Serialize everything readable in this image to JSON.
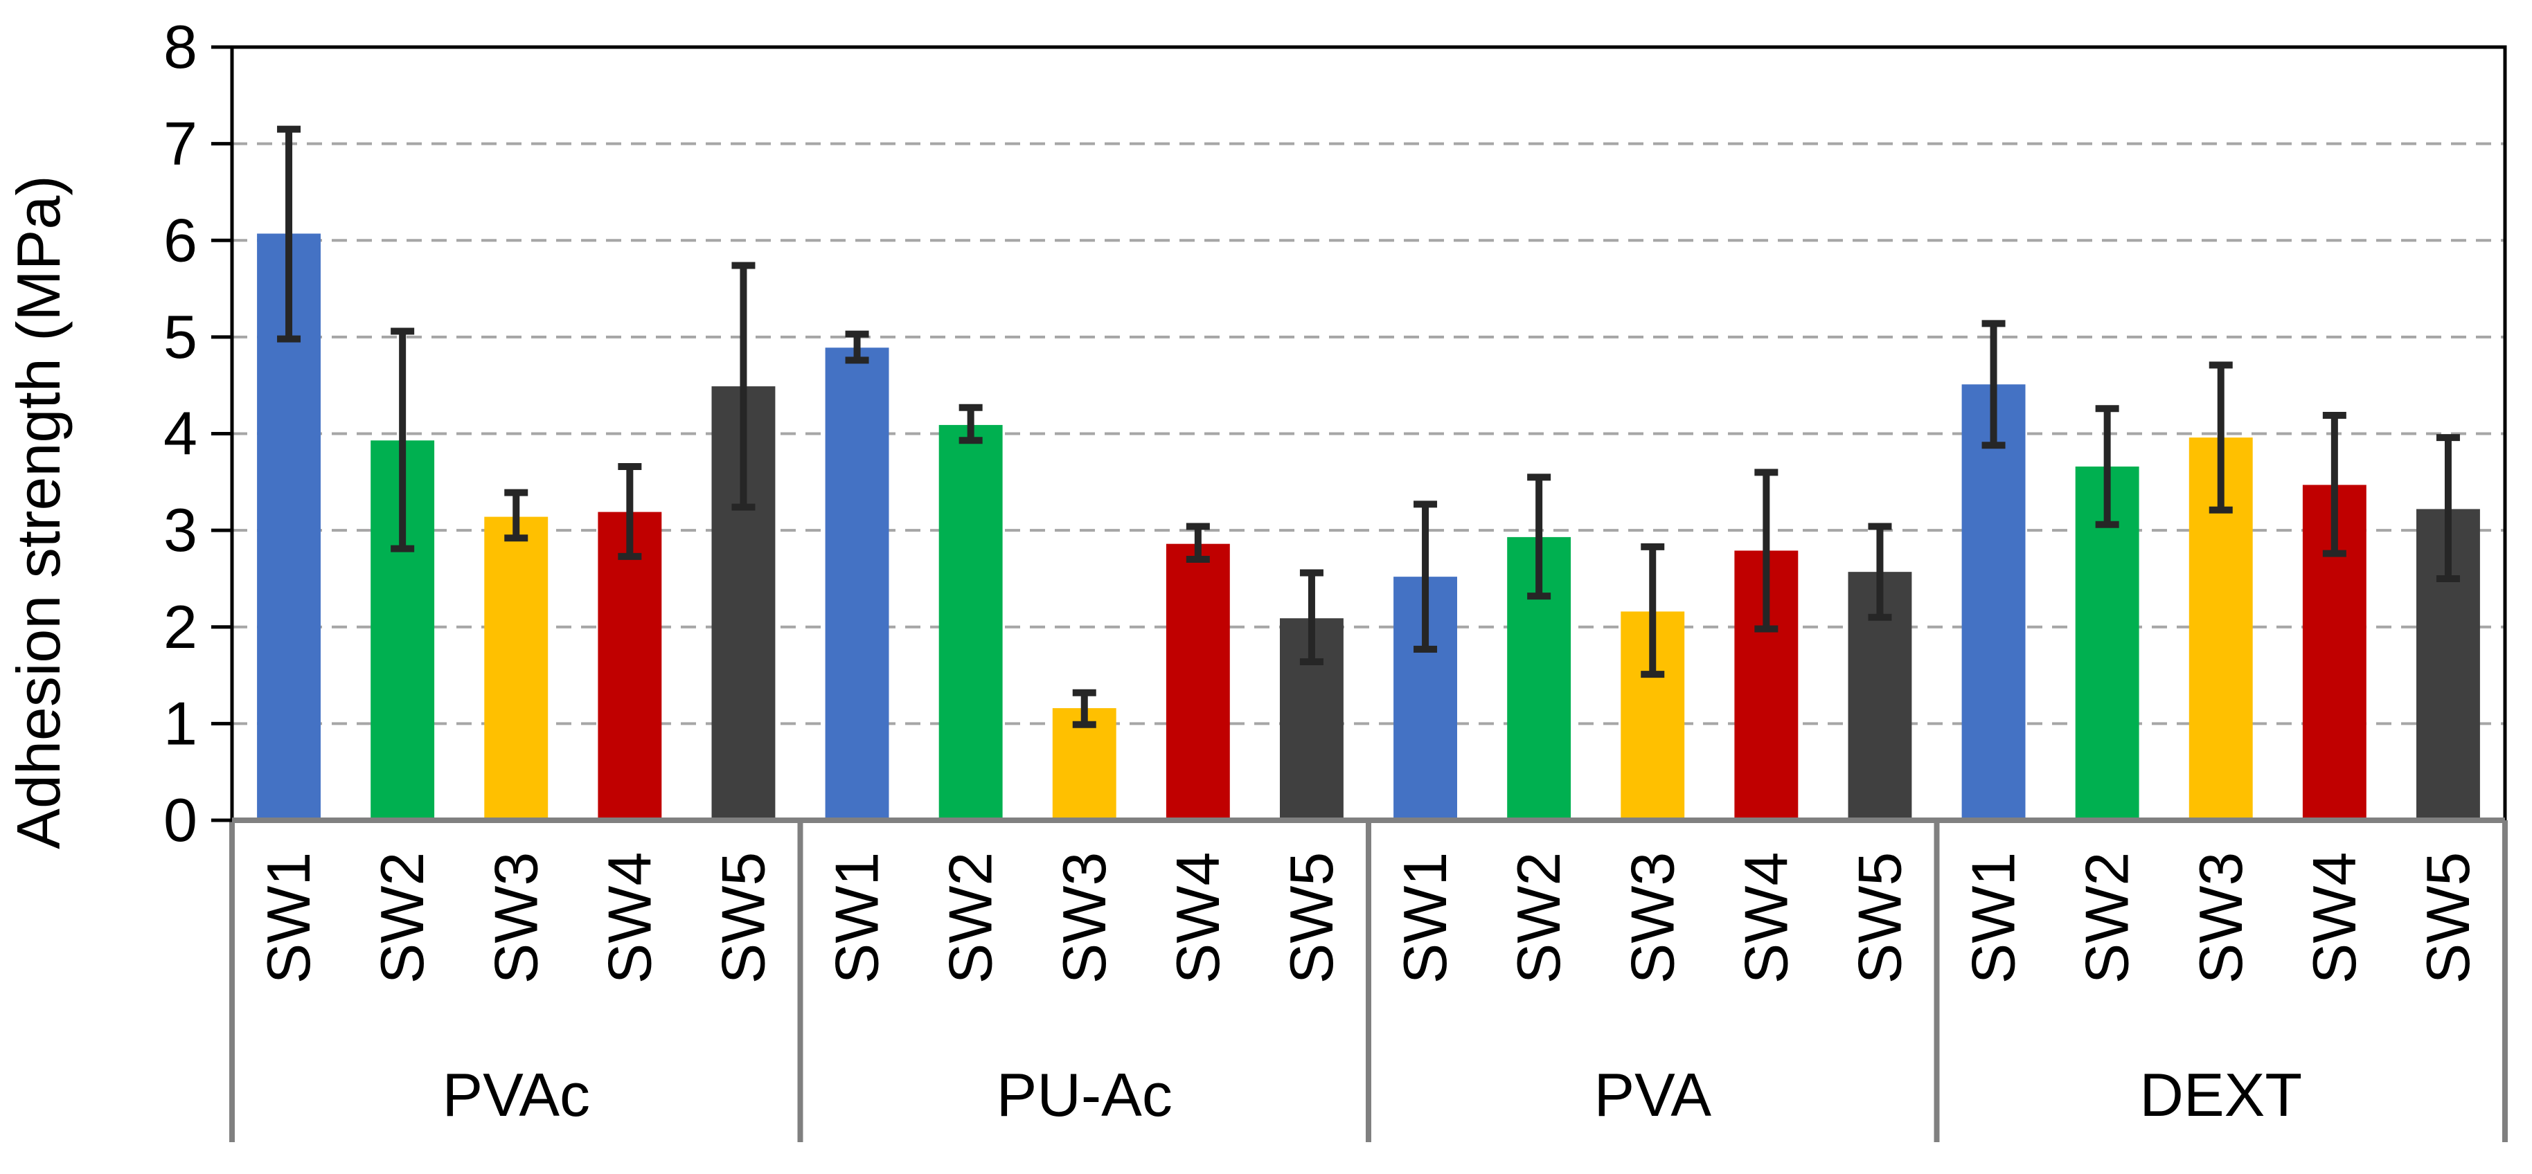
{
  "chart_data": {
    "type": "bar",
    "title": "",
    "ylabel": "Adhesion strength (MPa)",
    "xlabel": "",
    "ylim": [
      0,
      8
    ],
    "yticks": [
      "0",
      "1",
      "2",
      "3",
      "4",
      "5",
      "6",
      "7",
      "8"
    ],
    "grid": "horizontal dashed",
    "groups": [
      {
        "name": "PVAc",
        "bars": [
          {
            "label": "SW1",
            "value": 6.07,
            "err_low": 4.98,
            "err_high": 7.15
          },
          {
            "label": "SW2",
            "value": 3.93,
            "err_low": 2.81,
            "err_high": 5.06
          },
          {
            "label": "SW3",
            "value": 3.14,
            "err_low": 2.92,
            "err_high": 3.39
          },
          {
            "label": "SW4",
            "value": 3.19,
            "err_low": 2.73,
            "err_high": 3.66
          },
          {
            "label": "SW5",
            "value": 4.49,
            "err_low": 3.24,
            "err_high": 5.74
          }
        ]
      },
      {
        "name": "PU-Ac",
        "bars": [
          {
            "label": "SW1",
            "value": 4.89,
            "err_low": 4.76,
            "err_high": 5.03
          },
          {
            "label": "SW2",
            "value": 4.09,
            "err_low": 3.93,
            "err_high": 4.27
          },
          {
            "label": "SW3",
            "value": 1.16,
            "err_low": 0.99,
            "err_high": 1.32
          },
          {
            "label": "SW4",
            "value": 2.86,
            "err_low": 2.7,
            "err_high": 3.04
          },
          {
            "label": "SW5",
            "value": 2.09,
            "err_low": 1.64,
            "err_high": 2.56
          }
        ]
      },
      {
        "name": "PVA",
        "bars": [
          {
            "label": "SW1",
            "value": 2.52,
            "err_low": 1.77,
            "err_high": 3.27
          },
          {
            "label": "SW2",
            "value": 2.93,
            "err_low": 2.32,
            "err_high": 3.55
          },
          {
            "label": "SW3",
            "value": 2.16,
            "err_low": 1.51,
            "err_high": 2.83
          },
          {
            "label": "SW4",
            "value": 2.79,
            "err_low": 1.98,
            "err_high": 3.6
          },
          {
            "label": "SW5",
            "value": 2.57,
            "err_low": 2.1,
            "err_high": 3.04
          }
        ]
      },
      {
        "name": "DEXT",
        "bars": [
          {
            "label": "SW1",
            "value": 4.51,
            "err_low": 3.88,
            "err_high": 5.14
          },
          {
            "label": "SW2",
            "value": 3.66,
            "err_low": 3.06,
            "err_high": 4.26
          },
          {
            "label": "SW3",
            "value": 3.96,
            "err_low": 3.21,
            "err_high": 4.71
          },
          {
            "label": "SW4",
            "value": 3.47,
            "err_low": 2.76,
            "err_high": 4.19
          },
          {
            "label": "SW5",
            "value": 3.22,
            "err_low": 2.5,
            "err_high": 3.96
          }
        ]
      }
    ],
    "series_colors": {
      "SW1": "#4472C4",
      "SW2": "#00B050",
      "SW3": "#FFC000",
      "SW4": "#C00000",
      "SW5": "#404040"
    },
    "errorbar_color": "#262626",
    "gridline_color": "#A6A6A6",
    "divider_color": "#808080"
  }
}
